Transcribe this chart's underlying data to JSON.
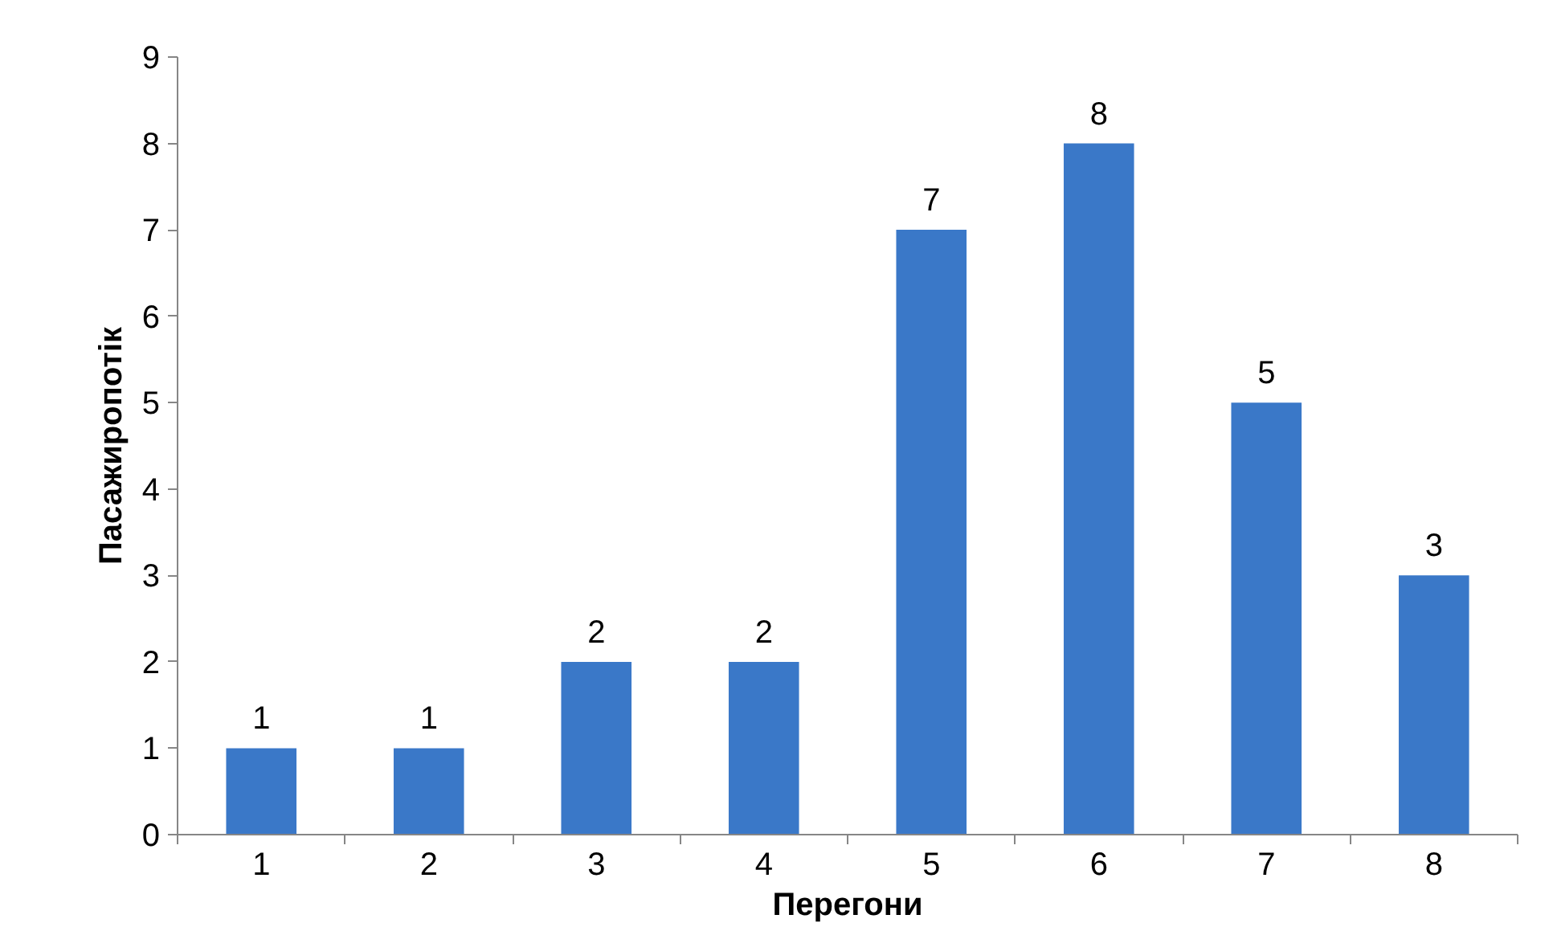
{
  "chart_data": {
    "type": "bar",
    "xlabel": "Перегони",
    "ylabel": "Пасажиропотік",
    "categories": [
      "1",
      "2",
      "3",
      "4",
      "5",
      "6",
      "7",
      "8"
    ],
    "values": [
      1,
      1,
      2,
      2,
      7,
      8,
      5,
      3
    ],
    "color": "#3a78c8",
    "ylim": [
      0,
      9
    ],
    "yticks": [
      0,
      1,
      2,
      3,
      4,
      5,
      6,
      7,
      8,
      9
    ],
    "grid": false,
    "data_labels": true
  }
}
